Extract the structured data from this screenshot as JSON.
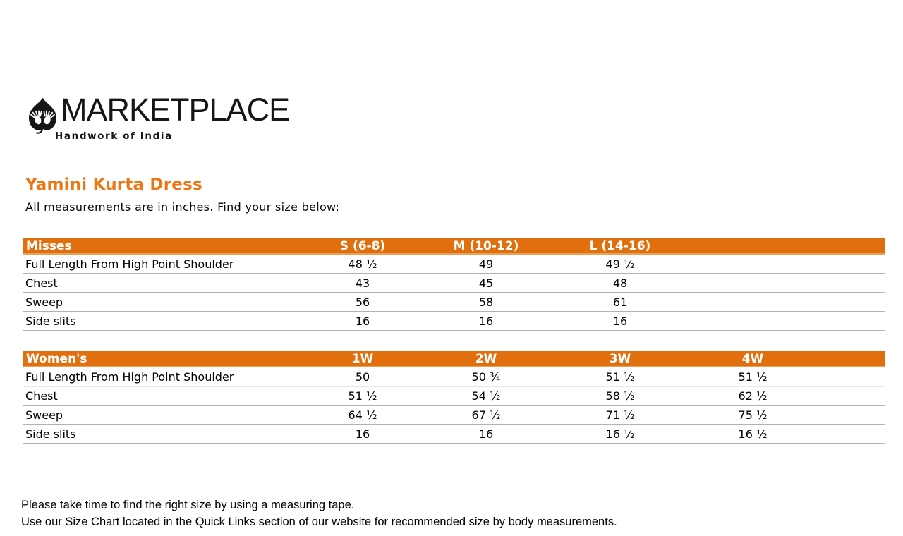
{
  "logo": {
    "brand": "MARKETPLACE",
    "tagline": "Handwork of India",
    "icon": "leaf-with-hands-icon"
  },
  "page": {
    "title": "Yamini Kurta Dress",
    "subtitle": "All measurements are in inches. Find your size below:"
  },
  "colors": {
    "header_orange": "#e26f0e",
    "title_orange": "#ee7511",
    "row_divider_gray": "#b3b3b3"
  },
  "tables": [
    {
      "name": "Misses",
      "columns": [
        "S (6-8)",
        "M (10-12)",
        "L (14-16)"
      ],
      "rows": [
        {
          "label": "Full Length From High Point Shoulder",
          "values": [
            "48 ½",
            "49",
            "49 ½"
          ]
        },
        {
          "label": "Chest",
          "values": [
            "43",
            "45",
            "48"
          ]
        },
        {
          "label": "Sweep",
          "values": [
            "56",
            "58",
            "61"
          ]
        },
        {
          "label": "Side slits",
          "values": [
            "16",
            "16",
            "16"
          ]
        }
      ]
    },
    {
      "name": "Women's",
      "columns": [
        "1W",
        "2W",
        "3W",
        "4W"
      ],
      "rows": [
        {
          "label": "Full Length From High Point Shoulder",
          "values": [
            "50",
            "50 ¾",
            "51 ½",
            "51 ½"
          ]
        },
        {
          "label": "Chest",
          "values": [
            "51 ½",
            "54 ½",
            "58 ½",
            "62 ½"
          ]
        },
        {
          "label": "Sweep",
          "values": [
            "64 ½",
            "67 ½",
            "71 ½",
            "75 ½"
          ]
        },
        {
          "label": "Side slits",
          "values": [
            "16",
            "16",
            "16 ½",
            "16 ½"
          ]
        }
      ]
    }
  ],
  "footer": {
    "line1": "Please take time to find the right size by using a measuring tape.",
    "line2": "Use our Size Chart located in the Quick Links section of our website for recommended size by body measurements."
  }
}
